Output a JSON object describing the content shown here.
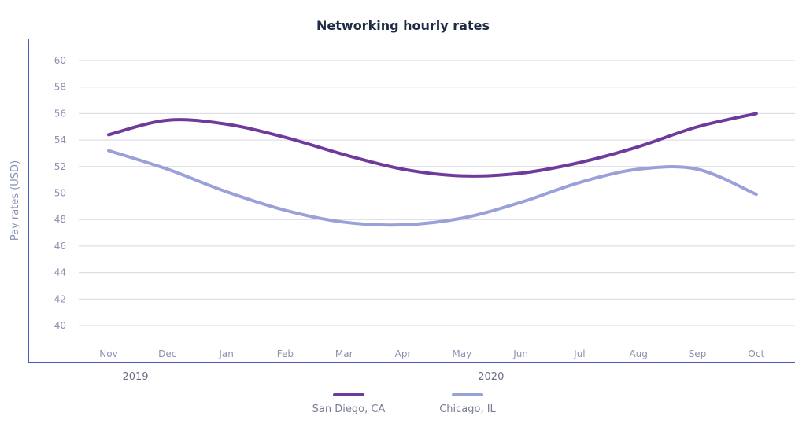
{
  "chart_data": {
    "type": "line",
    "title": "Networking hourly rates",
    "ylabel": "Pay rates (USD)",
    "xlabel": "",
    "categories": [
      "Nov",
      "Dec",
      "Jan",
      "Feb",
      "Mar",
      "Apr",
      "May",
      "Jun",
      "Jul",
      "Aug",
      "Sep",
      "Oct"
    ],
    "year_labels": [
      {
        "label": "2019",
        "month": "Nov"
      },
      {
        "label": "2020",
        "month": "May"
      }
    ],
    "ylim": [
      40,
      60
    ],
    "yticks": [
      "40",
      "42",
      "44",
      "46",
      "48",
      "50",
      "52",
      "54",
      "56",
      "58",
      "60"
    ],
    "grid": true,
    "smooth": true,
    "legend": "bottom",
    "series": [
      {
        "name": "San Diego, CA",
        "color": "#6e3a9c",
        "values": [
          54.4,
          55.5,
          55.2,
          54.2,
          52.9,
          51.8,
          51.3,
          51.5,
          52.3,
          53.5,
          55.0,
          56.0
        ]
      },
      {
        "name": "Chicago, IL",
        "color": "#9aa0d8",
        "values": [
          53.2,
          51.8,
          50.1,
          48.7,
          47.8,
          47.6,
          48.1,
          49.3,
          50.8,
          51.8,
          51.8,
          49.9
        ]
      }
    ]
  }
}
